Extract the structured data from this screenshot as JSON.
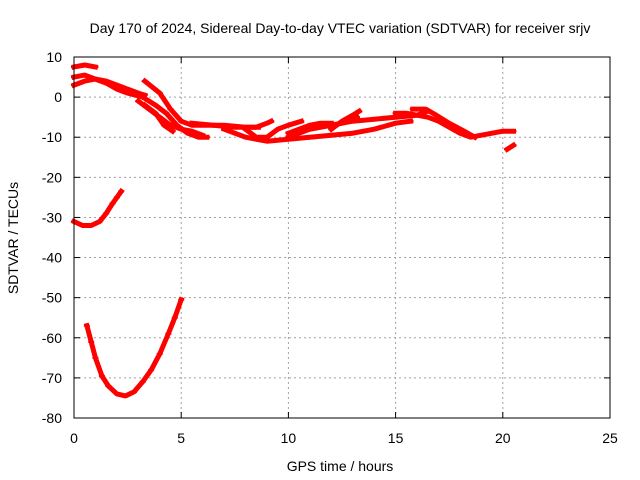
{
  "chart_data": {
    "type": "scatter",
    "title": "Day 170 of 2024, Sidereal Day-to-day VTEC variation (SDTVAR) for receiver srjv",
    "xlabel": "GPS time / hours",
    "ylabel": "SDTVAR / TECUs",
    "xlim": [
      0,
      25
    ],
    "ylim": [
      -80,
      10
    ],
    "xticks": [
      0,
      5,
      10,
      15,
      20,
      25
    ],
    "yticks": [
      10,
      0,
      -10,
      -20,
      -30,
      -40,
      -50,
      -60,
      -70,
      -80
    ],
    "grid": true,
    "legend": "none",
    "series_color": "#ff0000",
    "series": [
      {
        "name": "track-1",
        "points": [
          [
            0.0,
            7.5
          ],
          [
            0.5,
            8.0
          ],
          [
            1.0,
            7.5
          ]
        ]
      },
      {
        "name": "track-2",
        "points": [
          [
            0.0,
            5.0
          ],
          [
            0.5,
            5.5
          ],
          [
            1.0,
            4.5
          ],
          [
            1.5,
            4.0
          ],
          [
            2.0,
            3.0
          ],
          [
            2.5,
            2.0
          ],
          [
            3.0,
            1.0
          ],
          [
            3.3,
            0.5
          ]
        ]
      },
      {
        "name": "track-3",
        "points": [
          [
            0.0,
            3.0
          ],
          [
            0.5,
            4.0
          ],
          [
            1.0,
            4.5
          ],
          [
            1.5,
            3.5
          ],
          [
            2.0,
            2.0
          ],
          [
            2.5,
            1.0
          ],
          [
            3.2,
            0.0
          ]
        ]
      },
      {
        "name": "track-4",
        "points": [
          [
            3.2,
            0.0
          ],
          [
            3.8,
            -2.0
          ],
          [
            4.3,
            -4.0
          ],
          [
            4.8,
            -7.0
          ],
          [
            5.3,
            -9.0
          ],
          [
            5.8,
            -10.0
          ],
          [
            6.2,
            -10.0
          ]
        ]
      },
      {
        "name": "track-5",
        "points": [
          [
            3.3,
            4.0
          ],
          [
            4.0,
            1.0
          ],
          [
            4.5,
            -3.0
          ],
          [
            5.0,
            -6.0
          ],
          [
            5.5,
            -7.0
          ],
          [
            6.0,
            -7.0
          ],
          [
            7.0,
            -7.0
          ],
          [
            8.0,
            -7.5
          ],
          [
            8.6,
            -7.5
          ]
        ]
      },
      {
        "name": "track-6",
        "points": [
          [
            3.0,
            -1.0
          ],
          [
            3.5,
            -3.0
          ],
          [
            4.0,
            -5.0
          ],
          [
            4.5,
            -7.0
          ],
          [
            5.0,
            -8.0
          ],
          [
            5.5,
            -8.5
          ],
          [
            6.0,
            -9.5
          ]
        ]
      },
      {
        "name": "track-7",
        "points": [
          [
            3.3,
            -2.0
          ],
          [
            3.8,
            -4.0
          ],
          [
            4.2,
            -7.0
          ],
          [
            4.6,
            -8.5
          ]
        ]
      },
      {
        "name": "track-8",
        "points": [
          [
            5.5,
            -6.5
          ],
          [
            6.5,
            -7.0
          ],
          [
            7.5,
            -7.5
          ],
          [
            8.5,
            -7.5
          ],
          [
            9.0,
            -6.5
          ],
          [
            9.2,
            -6.0
          ]
        ]
      },
      {
        "name": "track-9",
        "points": [
          [
            7.0,
            -8.0
          ],
          [
            8.0,
            -10.0
          ],
          [
            9.0,
            -11.0
          ],
          [
            10.0,
            -10.5
          ],
          [
            11.0,
            -10.0
          ],
          [
            12.0,
            -9.5
          ],
          [
            13.0,
            -9.0
          ],
          [
            14.0,
            -8.0
          ],
          [
            15.0,
            -6.5
          ],
          [
            15.7,
            -6.0
          ]
        ]
      },
      {
        "name": "track-10",
        "points": [
          [
            8.0,
            -8.0
          ],
          [
            8.5,
            -10.0
          ],
          [
            9.0,
            -10.0
          ],
          [
            9.5,
            -8.0
          ],
          [
            10.0,
            -7.0
          ],
          [
            10.6,
            -6.0
          ]
        ]
      },
      {
        "name": "track-11",
        "points": [
          [
            10.0,
            -9.0
          ],
          [
            10.5,
            -8.0
          ],
          [
            11.0,
            -7.0
          ],
          [
            11.5,
            -6.5
          ],
          [
            12.0,
            -6.5
          ]
        ]
      },
      {
        "name": "track-12",
        "points": [
          [
            10.0,
            -10.0
          ],
          [
            11.0,
            -8.0
          ],
          [
            12.0,
            -7.0
          ],
          [
            13.0,
            -6.0
          ],
          [
            14.0,
            -5.5
          ],
          [
            15.0,
            -5.0
          ],
          [
            16.0,
            -4.5
          ],
          [
            16.5,
            -3.5
          ]
        ]
      },
      {
        "name": "track-13",
        "points": [
          [
            10.5,
            -8.5
          ],
          [
            11.5,
            -7.5
          ],
          [
            12.5,
            -6.5
          ],
          [
            13.2,
            -5.0
          ]
        ]
      },
      {
        "name": "track-14",
        "points": [
          [
            12.0,
            -8.0
          ],
          [
            12.5,
            -6.0
          ],
          [
            13.0,
            -4.5
          ],
          [
            13.3,
            -3.5
          ]
        ]
      },
      {
        "name": "track-15",
        "points": [
          [
            15.0,
            -4.0
          ],
          [
            15.5,
            -4.0
          ],
          [
            16.0,
            -4.5
          ],
          [
            16.5,
            -5.0
          ],
          [
            17.0,
            -6.0
          ],
          [
            17.5,
            -7.5
          ],
          [
            18.0,
            -9.0
          ],
          [
            18.5,
            -10.0
          ],
          [
            19.0,
            -9.5
          ],
          [
            19.5,
            -9.0
          ],
          [
            20.0,
            -8.5
          ],
          [
            20.5,
            -8.5
          ]
        ]
      },
      {
        "name": "track-16",
        "points": [
          [
            15.8,
            -3.0
          ],
          [
            16.4,
            -3.0
          ],
          [
            16.9,
            -4.5
          ],
          [
            17.5,
            -6.5
          ],
          [
            18.2,
            -8.5
          ],
          [
            18.7,
            -10.0
          ]
        ]
      },
      {
        "name": "track-17",
        "points": [
          [
            20.2,
            -13.0
          ],
          [
            20.5,
            -12.0
          ]
        ]
      },
      {
        "name": "track-18",
        "points": [
          [
            0.0,
            -31.0
          ],
          [
            0.4,
            -32.0
          ],
          [
            0.8,
            -32.0
          ],
          [
            1.2,
            -31.0
          ],
          [
            1.5,
            -29.0
          ],
          [
            1.8,
            -26.5
          ],
          [
            2.0,
            -25.0
          ],
          [
            2.2,
            -23.5
          ]
        ]
      },
      {
        "name": "track-19",
        "points": [
          [
            0.6,
            -57.0
          ],
          [
            0.8,
            -61.0
          ],
          [
            1.0,
            -65.0
          ],
          [
            1.3,
            -69.5
          ],
          [
            1.6,
            -72.0
          ],
          [
            2.0,
            -74.0
          ],
          [
            2.4,
            -74.5
          ],
          [
            2.8,
            -73.5
          ],
          [
            3.2,
            -71.0
          ],
          [
            3.6,
            -68.0
          ],
          [
            4.0,
            -64.0
          ],
          [
            4.4,
            -59.0
          ],
          [
            4.7,
            -55.0
          ],
          [
            5.0,
            -50.5
          ]
        ]
      }
    ]
  }
}
